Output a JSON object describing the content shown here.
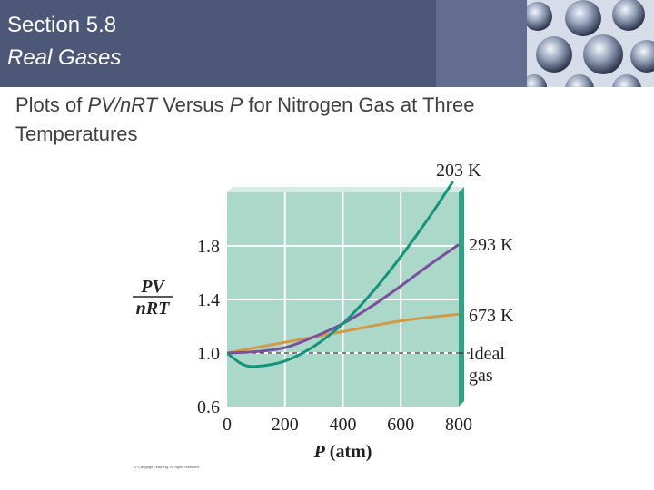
{
  "header": {
    "section_number": "Section 5.8",
    "section_title": "Real Gases"
  },
  "slide": {
    "title_parts": [
      "Plots of ",
      "PV/nRT",
      " Versus ",
      "P",
      " for Nitrogen Gas at Three Temperatures"
    ]
  },
  "copyright": "© Cengage Learning. All rights reserved.",
  "chart_data": {
    "type": "line",
    "xlabel_italic": "P",
    "xlabel_rest": " (atm)",
    "ylabel_top": "PV",
    "ylabel_bottom": "nRT",
    "xlim": [
      0,
      800
    ],
    "ylim": [
      0.6,
      2.2
    ],
    "x_ticks": [
      "0",
      "200",
      "400",
      "600",
      "800"
    ],
    "x_tick_values": [
      0,
      200,
      400,
      600,
      800
    ],
    "y_ticks": [
      "0.6",
      "1.0",
      "1.4",
      "1.8"
    ],
    "y_tick_values": [
      0.6,
      1.0,
      1.4,
      1.8
    ],
    "grid": true,
    "background_color": "#abd8c9",
    "series": [
      {
        "name": "203 K",
        "color": "#16937a",
        "x": [
          0,
          50,
          100,
          200,
          300,
          400,
          500,
          600,
          700,
          780
        ],
        "y": [
          1.0,
          0.92,
          0.9,
          0.94,
          1.05,
          1.22,
          1.45,
          1.72,
          2.02,
          2.28
        ]
      },
      {
        "name": "293 K",
        "color": "#7a4fa0",
        "x": [
          0,
          100,
          200,
          300,
          400,
          500,
          600,
          700,
          800
        ],
        "y": [
          1.0,
          1.01,
          1.04,
          1.12,
          1.22,
          1.35,
          1.5,
          1.66,
          1.81
        ]
      },
      {
        "name": "673 K",
        "color": "#d39a45",
        "x": [
          0,
          200,
          400,
          600,
          800
        ],
        "y": [
          1.0,
          1.08,
          1.16,
          1.24,
          1.29
        ]
      },
      {
        "name": "Ideal gas",
        "label_lines": [
          "Ideal",
          "gas"
        ],
        "color": "#333333",
        "dashed": true,
        "x": [
          0,
          800
        ],
        "y": [
          1.0,
          1.0
        ]
      }
    ]
  }
}
